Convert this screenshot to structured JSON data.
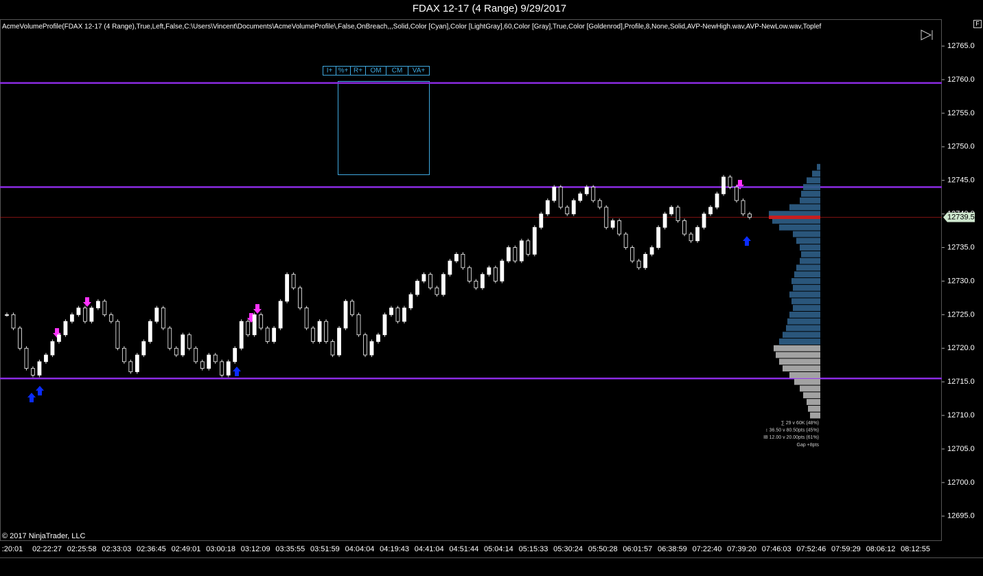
{
  "chart_data": {
    "type": "candlestick",
    "title": "FDAX 12-17 (4 Range)  9/29/2017",
    "indicator_text": "AcmeVolumeProfile(FDAX 12-17 (4 Range),True,Left,False,C:\\Users\\Vincent\\Documents\\AcmeVolumeProfile\\,False,OnBreach,,,Solid,Color [Cyan],Color [LightGray],60,Color [Gray],True,Color [Goldenrod],Profile,8,None,Solid,AVP-NewHigh.wav,AVP-NewLow.wav,Toplef",
    "copyright": "© 2017 NinjaTrader, LLC",
    "close": [
      12725,
      12723,
      12720,
      12717,
      12716,
      12718,
      12719,
      12721,
      12722,
      12724,
      12725,
      12726,
      12724,
      12726,
      12727,
      12725,
      12724,
      12720,
      12718,
      12716.5,
      12719,
      12721,
      12724,
      12726,
      12723,
      12720,
      12719,
      12722,
      12720,
      12718,
      12717,
      12719,
      12718,
      12716,
      12718,
      12720,
      12724,
      12722,
      12725,
      12723,
      12721,
      12723,
      12727,
      12731,
      12729,
      12726,
      12723,
      12721,
      12724,
      12721,
      12719,
      12723,
      12727,
      12725,
      12722,
      12719,
      12721,
      12722,
      12725,
      12726,
      12724,
      12726,
      12728,
      12730,
      12731,
      12729,
      12728,
      12731,
      12733,
      12734,
      12732,
      12730,
      12729,
      12731,
      12732,
      12730,
      12733,
      12735,
      12733,
      12736,
      12734,
      12738,
      12740,
      12742,
      12744,
      12741,
      12740,
      12742,
      12743,
      12744,
      12742,
      12741,
      12738,
      12739,
      12737,
      12735,
      12733,
      12732,
      12734,
      12735,
      12738,
      12740,
      12741,
      12739,
      12737,
      12736,
      12738,
      12740,
      12741,
      12743,
      12745.5,
      12744,
      12742,
      12740,
      12739.5
    ],
    "ylim": [
      12691.3,
      12769
    ],
    "yticks": [
      {
        "value": 12695,
        "label": "12695.0"
      },
      {
        "value": 12700,
        "label": "12700.0"
      },
      {
        "value": 12705,
        "label": "12705.0"
      },
      {
        "value": 12710,
        "label": "12710.0"
      },
      {
        "value": 12715,
        "label": "12715.0"
      },
      {
        "value": 12720,
        "label": "12720.0"
      },
      {
        "value": 12725,
        "label": "12725.0"
      },
      {
        "value": 12730,
        "label": "12730.0"
      },
      {
        "value": 12735,
        "label": "12735.0"
      },
      {
        "value": 12740,
        "label": "12740.0"
      },
      {
        "value": 12745,
        "label": "12745.0"
      },
      {
        "value": 12750,
        "label": "12750.0"
      },
      {
        "value": 12755,
        "label": "12755.0"
      },
      {
        "value": 12760,
        "label": "12760.0"
      },
      {
        "value": 12765,
        "label": "12765.0"
      }
    ],
    "x_tick_labels": [
      ":20:01",
      "02:22:27",
      "02:25:58",
      "02:33:03",
      "02:36:45",
      "02:49:01",
      "03:00:18",
      "03:12:09",
      "03:35:55",
      "03:51:59",
      "04:04:04",
      "04:19:43",
      "04:41:04",
      "04:51:44",
      "05:04:14",
      "05:15:33",
      "05:30:24",
      "05:50:28",
      "06:01:57",
      "06:38:59",
      "07:22:40",
      "07:39:20",
      "07:46:03",
      "07:52:46",
      "07:59:29",
      "08:06:12",
      "08:12:55"
    ],
    "levels": [
      12759.5,
      12744,
      12715.5
    ],
    "level_color": "#8a2be2",
    "last_price": {
      "value": 12739.5,
      "label": "12739.5"
    },
    "last_price_color": "#c81e1e",
    "profile": {
      "lower": {
        "prices": [
          12710,
          12711,
          12712,
          12713,
          12714,
          12715,
          12716,
          12717,
          12718,
          12719,
          12720
        ],
        "volumes": [
          15,
          18,
          20,
          25,
          30,
          38,
          45,
          55,
          60,
          65,
          68
        ],
        "color": "#b4b4b4"
      },
      "upper": {
        "prices": [
          12721,
          12722,
          12723,
          12724,
          12725,
          12726,
          12727,
          12728,
          12729,
          12730,
          12731,
          12732,
          12733,
          12734,
          12735,
          12736,
          12737,
          12738,
          12739,
          12740,
          12741,
          12742,
          12743,
          12744,
          12745,
          12746,
          12747
        ],
        "volumes": [
          60,
          55,
          50,
          48,
          45,
          40,
          42,
          45,
          40,
          42,
          38,
          35,
          30,
          28,
          30,
          35,
          40,
          60,
          70,
          75,
          45,
          30,
          28,
          25,
          20,
          12,
          5
        ],
        "color": "#2f5f88"
      }
    },
    "buttons": [
      "I+",
      "%+",
      "R+",
      "OM",
      "CM",
      "VA+"
    ],
    "stats": [
      "∑ 29 v 60K (48%)",
      "↕ 36.50 v 80.50pts (45%)",
      "IB 12.00 v 20.00pts (61%)",
      "Gap +8pts"
    ]
  }
}
